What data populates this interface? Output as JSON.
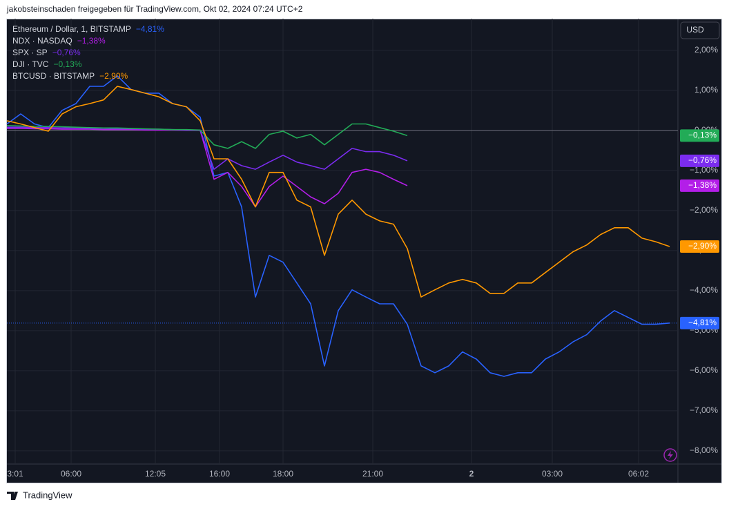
{
  "header": "jakobsteinschaden freigegeben für TradingView.com, Okt 02, 2024 07:24 UTC+2",
  "currency": "USD",
  "footer": "TradingView",
  "chart_data": {
    "type": "line",
    "x": [
      0,
      20,
      40,
      60,
      80,
      100,
      120,
      140,
      160,
      180,
      200,
      220,
      240,
      260,
      280,
      300,
      320,
      340,
      360,
      380,
      400,
      420,
      440,
      460,
      480,
      500,
      520,
      540,
      560,
      580,
      600,
      620,
      640,
      660,
      680,
      700,
      720,
      740,
      760,
      780,
      800,
      820,
      840,
      860,
      880,
      900,
      920,
      940,
      960
    ],
    "xlim": [
      0,
      972
    ],
    "xticks": [
      {
        "value": 12,
        "label": "3:01"
      },
      {
        "value": 93,
        "label": "06:00"
      },
      {
        "value": 215,
        "label": "12:05"
      },
      {
        "value": 308,
        "label": "16:00"
      },
      {
        "value": 400,
        "label": "18:00"
      },
      {
        "value": 530,
        "label": "21:00"
      },
      {
        "value": 673,
        "label": "2"
      },
      {
        "value": 790,
        "label": "03:00"
      },
      {
        "value": 915,
        "label": "06:02"
      }
    ],
    "ylim": [
      -8.33,
      2.79
    ],
    "yticks": [
      {
        "value": 2,
        "label": "2,00%"
      },
      {
        "value": 1,
        "label": "1,00%"
      },
      {
        "value": 0,
        "label": "0,00%"
      },
      {
        "value": -1,
        "label": "−1,00%"
      },
      {
        "value": -2,
        "label": "−2,00%"
      },
      {
        "value": -3,
        "label": "−3,00%"
      },
      {
        "value": -4,
        "label": "−4,00%"
      },
      {
        "value": -5,
        "label": "−5,00%"
      },
      {
        "value": -6,
        "label": "−6,00%"
      },
      {
        "value": -7,
        "label": "−7,00%"
      },
      {
        "value": -8,
        "label": "−8,00%"
      }
    ],
    "grid": true,
    "series": [
      {
        "name": "Ethereum / Dollar, 1, BITSTAMP",
        "color": "#2962ff",
        "last_label": "−4,81%",
        "values": [
          0.16,
          0.41,
          0.16,
          0.07,
          0.5,
          0.67,
          1.1,
          1.1,
          1.36,
          1.02,
          0.93,
          0.93,
          0.67,
          0.59,
          0.33,
          -1.14,
          -1.05,
          -1.91,
          -4.16,
          -3.12,
          -3.29,
          -3.81,
          -4.33,
          -5.88,
          -4.5,
          -3.98,
          -4.16,
          -4.33,
          -4.33,
          -4.84,
          -5.88,
          -6.05,
          -5.88,
          -5.53,
          -5.71,
          -6.05,
          -6.14,
          -6.05,
          -6.05,
          -5.71,
          -5.53,
          -5.28,
          -5.1,
          -4.76,
          -4.5,
          -4.67,
          -4.84,
          -4.84,
          -4.81
        ]
      },
      {
        "name": "NDX · NASDAQ",
        "color": "#b31ee8",
        "last_label": "−1,38%",
        "values": [
          0.05,
          0.05,
          0.04,
          0.04,
          0.03,
          0.03,
          0.03,
          0.02,
          0.02,
          0.02,
          0.01,
          0.01,
          0.01,
          0.0,
          0.0,
          -1.22,
          -1.05,
          -1.4,
          -1.91,
          -1.4,
          -1.14,
          -1.4,
          -1.66,
          -1.83,
          -1.57,
          -1.05,
          -0.97,
          -1.05,
          -1.22,
          -1.38,
          null,
          null,
          null,
          null,
          null,
          null,
          null,
          null,
          null,
          null,
          null,
          null,
          null,
          null,
          null,
          null,
          null,
          null,
          null
        ]
      },
      {
        "name": "SPX · SP",
        "color": "#7b2cf0",
        "last_label": "−0,76%",
        "values": [
          0.08,
          0.08,
          0.07,
          0.07,
          0.06,
          0.06,
          0.05,
          0.05,
          0.04,
          0.04,
          0.03,
          0.03,
          0.02,
          0.01,
          0.01,
          -0.97,
          -0.71,
          -0.88,
          -0.97,
          -0.79,
          -0.62,
          -0.79,
          -0.88,
          -0.97,
          -0.71,
          -0.45,
          -0.53,
          -0.53,
          -0.62,
          -0.76,
          null,
          null,
          null,
          null,
          null,
          null,
          null,
          null,
          null,
          null,
          null,
          null,
          null,
          null,
          null,
          null,
          null,
          null,
          null
        ]
      },
      {
        "name": "DJI · TVC",
        "color": "#22ab57",
        "last_label": "−0,13%",
        "values": [
          0.12,
          0.11,
          0.1,
          0.1,
          0.09,
          0.08,
          0.07,
          0.06,
          0.06,
          0.05,
          0.04,
          0.03,
          0.02,
          0.02,
          0.01,
          -0.36,
          -0.45,
          -0.28,
          -0.45,
          -0.1,
          -0.02,
          -0.19,
          -0.1,
          -0.36,
          -0.1,
          0.16,
          0.16,
          0.07,
          -0.02,
          -0.13,
          null,
          null,
          null,
          null,
          null,
          null,
          null,
          null,
          null,
          null,
          null,
          null,
          null,
          null,
          null,
          null,
          null,
          null,
          null
        ]
      },
      {
        "name": "BTCUSD · BITSTAMP",
        "color": "#ff9800",
        "last_label": "−2,90%",
        "values": [
          0.24,
          0.16,
          0.07,
          -0.02,
          0.41,
          0.59,
          0.67,
          0.76,
          1.1,
          1.02,
          0.93,
          0.84,
          0.67,
          0.59,
          0.24,
          -0.71,
          -0.71,
          -1.22,
          -1.91,
          -1.05,
          -1.05,
          -1.74,
          -1.91,
          -3.12,
          -2.09,
          -1.74,
          -2.09,
          -2.26,
          -2.34,
          -2.95,
          -4.16,
          -3.98,
          -3.81,
          -3.72,
          -3.81,
          -4.07,
          -4.07,
          -3.81,
          -3.81,
          -3.55,
          -3.29,
          -3.03,
          -2.86,
          -2.6,
          -2.43,
          -2.43,
          -2.69,
          -2.78,
          -2.9
        ]
      }
    ]
  }
}
